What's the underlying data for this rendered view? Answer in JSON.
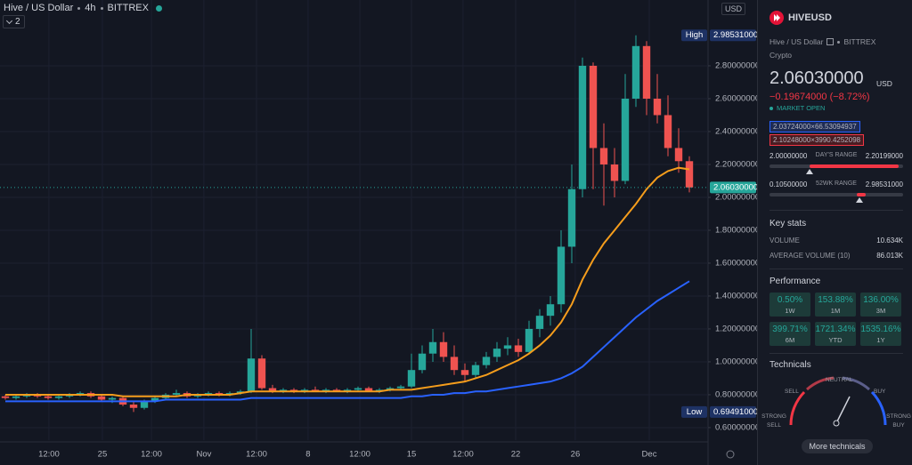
{
  "header": {
    "symbol_name": "Hive / US Dollar",
    "interval": "4h",
    "exchange": "BITTREX",
    "indicator_count": "2",
    "axis_currency": "USD"
  },
  "chart_data": {
    "type": "candlestick",
    "up_color": "#26a69a",
    "down_color": "#ef5350",
    "grid": true,
    "xlim": [
      -0.5,
      65.75
    ],
    "ylim": [
      0.524,
      3.2
    ],
    "yticks": [
      {
        "value": 0.6,
        "label": "0.60000000"
      },
      {
        "value": 0.8,
        "label": "0.80000000"
      },
      {
        "value": 1.0,
        "label": "1.00000000"
      },
      {
        "value": 1.2,
        "label": "1.20000000"
      },
      {
        "value": 1.4,
        "label": "1.40000000"
      },
      {
        "value": 1.6,
        "label": "1.60000000"
      },
      {
        "value": 1.8,
        "label": "1.80000000"
      },
      {
        "value": 2.0,
        "label": "2.00000000"
      },
      {
        "value": 2.2,
        "label": "2.20000000"
      },
      {
        "value": 2.4,
        "label": "2.40000000"
      },
      {
        "value": 2.6,
        "label": "2.60000000"
      },
      {
        "value": 2.8,
        "label": "2.80000000"
      }
    ],
    "xticks": [
      {
        "value": 4.08,
        "label": "12:00"
      },
      {
        "value": 9.08,
        "label": "25"
      },
      {
        "value": 13.67,
        "label": "12:00"
      },
      {
        "value": 18.58,
        "label": "Nov"
      },
      {
        "value": 23.5,
        "label": "12:00"
      },
      {
        "value": 28.33,
        "label": "8"
      },
      {
        "value": 33.17,
        "label": "12:00"
      },
      {
        "value": 38,
        "label": "15"
      },
      {
        "value": 42.83,
        "label": "12:00"
      },
      {
        "value": 47.75,
        "label": "22"
      },
      {
        "value": 53.33,
        "label": "26"
      },
      {
        "value": 60.25,
        "label": "Dec"
      }
    ],
    "open": [
      0.79,
      0.78,
      0.79,
      0.8,
      0.79,
      0.78,
      0.79,
      0.8,
      0.81,
      0.79,
      0.77,
      0.78,
      0.74,
      0.72,
      0.76,
      0.78,
      0.8,
      0.81,
      0.79,
      0.8,
      0.81,
      0.8,
      0.81,
      0.82,
      1.02,
      0.84,
      0.82,
      0.83,
      0.82,
      0.83,
      0.82,
      0.83,
      0.82,
      0.83,
      0.84,
      0.82,
      0.83,
      0.84,
      0.85,
      0.95,
      1.05,
      1.12,
      1.03,
      0.95,
      0.92,
      0.98,
      1.03,
      1.08,
      1.1,
      1.06,
      1.2,
      1.28,
      1.35,
      1.7,
      2.05,
      2.8,
      2.3,
      2.2,
      2.1,
      2.6,
      2.92,
      2.6,
      2.5,
      2.3,
      2.22
    ],
    "high": [
      0.8,
      0.8,
      0.81,
      0.81,
      0.8,
      0.8,
      0.81,
      0.82,
      0.82,
      0.8,
      0.79,
      0.79,
      0.76,
      0.77,
      0.79,
      0.81,
      0.83,
      0.82,
      0.81,
      0.82,
      0.82,
      0.82,
      0.83,
      1.2,
      1.04,
      0.86,
      0.84,
      0.84,
      0.84,
      0.85,
      0.84,
      0.84,
      0.84,
      0.85,
      0.85,
      0.84,
      0.85,
      0.86,
      1.05,
      1.1,
      1.2,
      1.18,
      1.1,
      0.99,
      1.0,
      1.06,
      1.12,
      1.15,
      1.14,
      1.25,
      1.32,
      1.4,
      1.8,
      2.2,
      2.85,
      2.82,
      2.45,
      2.3,
      2.75,
      2.98531,
      2.95,
      2.75,
      2.62,
      2.42,
      2.25
    ],
    "low": [
      0.77,
      0.77,
      0.78,
      0.78,
      0.77,
      0.77,
      0.78,
      0.79,
      0.78,
      0.76,
      0.75,
      0.73,
      0.69491,
      0.71,
      0.75,
      0.77,
      0.79,
      0.78,
      0.78,
      0.79,
      0.79,
      0.79,
      0.8,
      0.81,
      0.83,
      0.81,
      0.81,
      0.81,
      0.81,
      0.82,
      0.81,
      0.82,
      0.81,
      0.82,
      0.82,
      0.81,
      0.82,
      0.83,
      0.84,
      0.93,
      1.0,
      1.0,
      0.92,
      0.88,
      0.9,
      0.96,
      1.0,
      1.04,
      1.03,
      1.05,
      1.15,
      1.22,
      1.3,
      1.6,
      2.0,
      2.05,
      1.95,
      2.0,
      2.08,
      2.55,
      2.5,
      2.45,
      2.25,
      2.15,
      2.03
    ],
    "close": [
      0.78,
      0.79,
      0.8,
      0.79,
      0.78,
      0.79,
      0.8,
      0.81,
      0.79,
      0.77,
      0.78,
      0.74,
      0.72,
      0.76,
      0.78,
      0.8,
      0.81,
      0.79,
      0.8,
      0.81,
      0.8,
      0.81,
      0.82,
      1.02,
      0.84,
      0.82,
      0.83,
      0.82,
      0.83,
      0.82,
      0.83,
      0.82,
      0.83,
      0.84,
      0.82,
      0.83,
      0.84,
      0.85,
      0.95,
      1.05,
      1.12,
      1.03,
      0.95,
      0.92,
      0.98,
      1.03,
      1.08,
      1.1,
      1.06,
      1.2,
      1.28,
      1.35,
      1.7,
      2.05,
      2.8,
      2.3,
      2.2,
      2.1,
      2.6,
      2.92,
      2.6,
      2.5,
      2.3,
      2.22,
      2.0603
    ],
    "series": [
      {
        "color": "#f59d1c",
        "values": [
          0.8,
          0.8,
          0.8,
          0.8,
          0.8,
          0.8,
          0.8,
          0.8,
          0.8,
          0.8,
          0.8,
          0.79,
          0.79,
          0.79,
          0.79,
          0.79,
          0.79,
          0.8,
          0.8,
          0.8,
          0.8,
          0.8,
          0.81,
          0.82,
          0.82,
          0.82,
          0.82,
          0.82,
          0.82,
          0.82,
          0.82,
          0.82,
          0.82,
          0.82,
          0.82,
          0.82,
          0.83,
          0.83,
          0.83,
          0.84,
          0.85,
          0.86,
          0.87,
          0.88,
          0.9,
          0.92,
          0.95,
          0.98,
          1.01,
          1.05,
          1.1,
          1.16,
          1.24,
          1.35,
          1.5,
          1.62,
          1.72,
          1.8,
          1.88,
          1.96,
          2.05,
          2.12,
          2.16,
          2.18,
          2.17
        ]
      },
      {
        "color": "#2962ff",
        "values": [
          0.76,
          0.76,
          0.76,
          0.76,
          0.76,
          0.76,
          0.76,
          0.76,
          0.76,
          0.76,
          0.76,
          0.76,
          0.76,
          0.76,
          0.76,
          0.77,
          0.77,
          0.77,
          0.77,
          0.77,
          0.77,
          0.77,
          0.77,
          0.78,
          0.78,
          0.78,
          0.78,
          0.78,
          0.78,
          0.78,
          0.78,
          0.78,
          0.78,
          0.78,
          0.78,
          0.78,
          0.78,
          0.78,
          0.79,
          0.79,
          0.8,
          0.8,
          0.81,
          0.81,
          0.82,
          0.82,
          0.83,
          0.84,
          0.85,
          0.86,
          0.87,
          0.88,
          0.9,
          0.93,
          0.97,
          1.03,
          1.09,
          1.15,
          1.21,
          1.27,
          1.32,
          1.37,
          1.41,
          1.45,
          1.49
        ]
      }
    ],
    "high_tag": {
      "title": "High",
      "price": {
        "value": 2.98531,
        "label": "2.98531000"
      }
    },
    "low_tag": {
      "title": "Low",
      "price": {
        "value": 0.69491,
        "label": "0.69491000"
      }
    },
    "last_price": {
      "value": 2.0603,
      "label": "2.06030000"
    }
  },
  "sidebar": {
    "symbol": "HIVEUSD",
    "name": "Hive / US Dollar",
    "exchange": "BITTREX",
    "category": "Crypto",
    "price": "2.06030000",
    "currency": "USD",
    "change": "−0.19674000 (−8.72%)",
    "status": "MARKET OPEN",
    "bid": "2.03724000×66.53094937",
    "ask": "2.10248000×3990.4252098",
    "days_range": {
      "low": "2.00000000",
      "title": "DAY'S RANGE",
      "high": "2.20199000"
    },
    "week52_range": {
      "low": "0.10500000",
      "title": "52WK RANGE",
      "high": "2.98531000"
    },
    "key_stats": {
      "title": "Key stats",
      "rows": [
        [
          "VOLUME",
          "10.634K"
        ],
        [
          "AVERAGE VOLUME (10)",
          "86.013K"
        ]
      ]
    },
    "performance": {
      "title": "Performance",
      "tiles": [
        {
          "value": "0.50%",
          "period": "1W"
        },
        {
          "value": "153.88%",
          "period": "1M"
        },
        {
          "value": "136.00%",
          "period": "3M"
        },
        {
          "value": "399.71%",
          "period": "6M"
        },
        {
          "value": "1721.34%",
          "period": "YTD"
        },
        {
          "value": "1535.16%",
          "period": "1Y"
        }
      ]
    },
    "technicals": {
      "title": "Technicals",
      "neutral": "NEUTRAL",
      "sell": "SELL",
      "buy": "BUY",
      "strong_sell": "STRONG SELL",
      "strong_buy": "STRONG BUY",
      "button": "More technicals"
    }
  }
}
